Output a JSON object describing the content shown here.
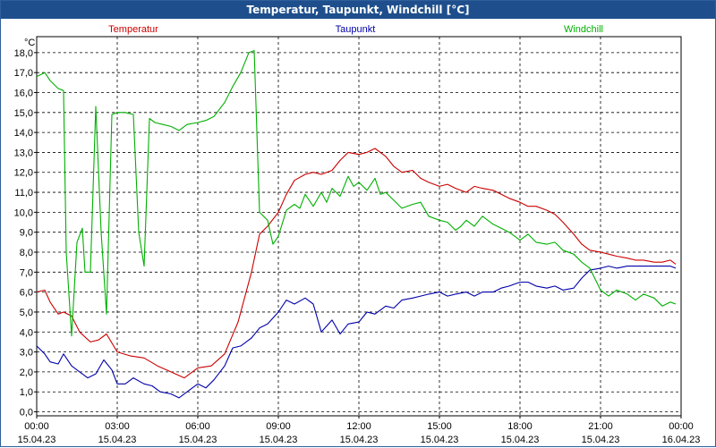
{
  "window": {
    "title": "Temperatur, Taupunkt, Windchill [°C]"
  },
  "chart_data": {
    "type": "line",
    "title": "Temperatur, Taupunkt, Windchill [°C]",
    "ylabel": "°C",
    "xlabel": "",
    "ylim": [
      -0.2,
      18.8
    ],
    "xlim": [
      0,
      24
    ],
    "grid": true,
    "legend_position": "top",
    "y_ticks": [
      "0,0",
      "1,0",
      "2,0",
      "3,0",
      "4,0",
      "5,0",
      "6,0",
      "7,0",
      "8,0",
      "9,0",
      "10,0",
      "11,0",
      "12,0",
      "13,0",
      "14,0",
      "15,0",
      "16,0",
      "17,0",
      "18,0"
    ],
    "x_ticks": [
      {
        "time": "00:00",
        "date": "15.04.23"
      },
      {
        "time": "03:00",
        "date": "15.04.23"
      },
      {
        "time": "06:00",
        "date": "15.04.23"
      },
      {
        "time": "09:00",
        "date": "15.04.23"
      },
      {
        "time": "12:00",
        "date": "15.04.23"
      },
      {
        "time": "15:00",
        "date": "15.04.23"
      },
      {
        "time": "18:00",
        "date": "15.04.23"
      },
      {
        "time": "21:00",
        "date": "15.04.23"
      },
      {
        "time": "00:00",
        "date": "16.04.23"
      }
    ],
    "series": [
      {
        "name": "Temperatur",
        "color": "#cc0000",
        "x": [
          0,
          0.3,
          0.5,
          0.8,
          1.0,
          1.3,
          1.6,
          2.0,
          2.3,
          2.6,
          3.0,
          3.5,
          4.0,
          4.5,
          5.0,
          5.5,
          6.0,
          6.5,
          7.0,
          7.5,
          8.0,
          8.3,
          8.6,
          9.0,
          9.3,
          9.6,
          10.0,
          10.3,
          10.6,
          11.0,
          11.3,
          11.6,
          12.0,
          12.3,
          12.6,
          13.0,
          13.3,
          13.6,
          14.0,
          14.3,
          14.6,
          15.0,
          15.3,
          15.6,
          16.0,
          16.3,
          16.6,
          17.0,
          17.3,
          17.6,
          18.0,
          18.3,
          18.6,
          19.0,
          19.3,
          19.6,
          20.0,
          20.3,
          20.6,
          21.0,
          21.3,
          21.6,
          22.0,
          22.3,
          22.6,
          23.0,
          23.3,
          23.6,
          23.8
        ],
        "values": [
          6.0,
          6.1,
          5.5,
          4.9,
          5.0,
          4.8,
          4.0,
          3.5,
          3.6,
          3.9,
          3.0,
          2.8,
          2.7,
          2.3,
          2.0,
          1.7,
          2.2,
          2.3,
          2.9,
          4.5,
          7.0,
          8.9,
          9.3,
          10.0,
          10.9,
          11.6,
          11.9,
          12.0,
          11.9,
          12.1,
          12.6,
          13.0,
          12.9,
          13.0,
          13.2,
          12.8,
          12.3,
          12.0,
          12.1,
          11.7,
          11.5,
          11.3,
          11.4,
          11.2,
          11.0,
          11.3,
          11.2,
          11.1,
          10.9,
          10.7,
          10.5,
          10.3,
          10.3,
          10.1,
          9.9,
          9.5,
          8.9,
          8.4,
          8.1,
          8.0,
          7.9,
          7.8,
          7.7,
          7.6,
          7.6,
          7.5,
          7.5,
          7.6,
          7.4
        ]
      },
      {
        "name": "Taupunkt",
        "color": "#0000aa",
        "x": [
          0,
          0.3,
          0.5,
          0.8,
          1.0,
          1.3,
          1.6,
          1.9,
          2.2,
          2.5,
          2.8,
          3.0,
          3.3,
          3.6,
          4.0,
          4.3,
          4.6,
          5.0,
          5.3,
          5.6,
          6.0,
          6.3,
          6.6,
          7.0,
          7.3,
          7.6,
          8.0,
          8.3,
          8.6,
          9.0,
          9.3,
          9.6,
          10.0,
          10.3,
          10.6,
          11.0,
          11.3,
          11.6,
          12.0,
          12.3,
          12.6,
          13.0,
          13.3,
          13.6,
          14.0,
          14.3,
          14.6,
          15.0,
          15.3,
          15.6,
          16.0,
          16.3,
          16.6,
          17.0,
          17.3,
          17.6,
          18.0,
          18.3,
          18.6,
          19.0,
          19.3,
          19.6,
          20.0,
          20.3,
          20.6,
          21.0,
          21.3,
          21.6,
          22.0,
          22.3,
          22.6,
          23.0,
          23.3,
          23.6,
          23.8
        ],
        "values": [
          3.3,
          2.9,
          2.5,
          2.4,
          2.9,
          2.3,
          2.0,
          1.7,
          1.9,
          2.6,
          2.1,
          1.4,
          1.4,
          1.7,
          1.4,
          1.3,
          1.0,
          0.9,
          0.7,
          1.0,
          1.4,
          1.2,
          1.6,
          2.3,
          3.2,
          3.3,
          3.7,
          4.2,
          4.4,
          5.0,
          5.6,
          5.4,
          5.7,
          5.4,
          4.0,
          4.6,
          3.9,
          4.4,
          4.5,
          5.0,
          4.9,
          5.3,
          5.2,
          5.6,
          5.7,
          5.8,
          5.9,
          6.0,
          5.8,
          5.9,
          6.0,
          5.8,
          6.0,
          6.0,
          6.2,
          6.3,
          6.5,
          6.5,
          6.3,
          6.2,
          6.3,
          6.1,
          6.2,
          6.7,
          7.1,
          7.2,
          7.3,
          7.2,
          7.3,
          7.3,
          7.3,
          7.3,
          7.3,
          7.3,
          7.2
        ]
      },
      {
        "name": "Windchill",
        "color": "#00b000",
        "x": [
          0,
          0.3,
          0.5,
          0.8,
          1.0,
          1.1,
          1.3,
          1.5,
          1.7,
          1.8,
          2.0,
          2.2,
          2.4,
          2.6,
          2.8,
          3.0,
          3.3,
          3.6,
          3.8,
          4.0,
          4.2,
          4.4,
          4.7,
          5.0,
          5.3,
          5.6,
          6.0,
          6.3,
          6.6,
          7.0,
          7.3,
          7.6,
          7.9,
          8.1,
          8.3,
          8.6,
          8.8,
          9.0,
          9.3,
          9.6,
          9.8,
          10.0,
          10.3,
          10.6,
          10.8,
          11.0,
          11.3,
          11.6,
          11.8,
          12.0,
          12.3,
          12.6,
          12.8,
          13.0,
          13.3,
          13.6,
          14.0,
          14.3,
          14.6,
          15.0,
          15.3,
          15.6,
          15.8,
          16.0,
          16.3,
          16.6,
          17.0,
          17.3,
          17.6,
          18.0,
          18.3,
          18.6,
          19.0,
          19.3,
          19.6,
          20.0,
          20.3,
          20.6,
          21.0,
          21.3,
          21.6,
          22.0,
          22.3,
          22.6,
          23.0,
          23.3,
          23.6,
          23.8
        ],
        "values": [
          16.8,
          17.0,
          16.6,
          16.2,
          16.1,
          8.0,
          3.8,
          8.5,
          9.2,
          7.0,
          7.0,
          15.3,
          9.0,
          4.9,
          14.9,
          15.0,
          15.0,
          14.9,
          9.0,
          7.3,
          14.7,
          14.5,
          14.4,
          14.3,
          14.1,
          14.4,
          14.5,
          14.6,
          14.8,
          15.5,
          16.3,
          17.0,
          18.0,
          18.1,
          10.0,
          9.6,
          8.4,
          8.8,
          10.1,
          10.4,
          10.2,
          10.9,
          10.3,
          11.0,
          10.5,
          11.2,
          10.8,
          11.8,
          11.3,
          11.5,
          11.1,
          11.7,
          10.9,
          11.0,
          10.6,
          10.2,
          10.4,
          10.5,
          9.8,
          9.6,
          9.5,
          9.1,
          9.3,
          9.6,
          9.3,
          9.8,
          9.4,
          9.2,
          9.0,
          8.6,
          8.9,
          8.5,
          8.4,
          8.5,
          8.1,
          7.9,
          7.5,
          7.2,
          6.1,
          5.8,
          6.1,
          5.9,
          5.6,
          5.9,
          5.7,
          5.3,
          5.5,
          5.4
        ]
      }
    ]
  }
}
